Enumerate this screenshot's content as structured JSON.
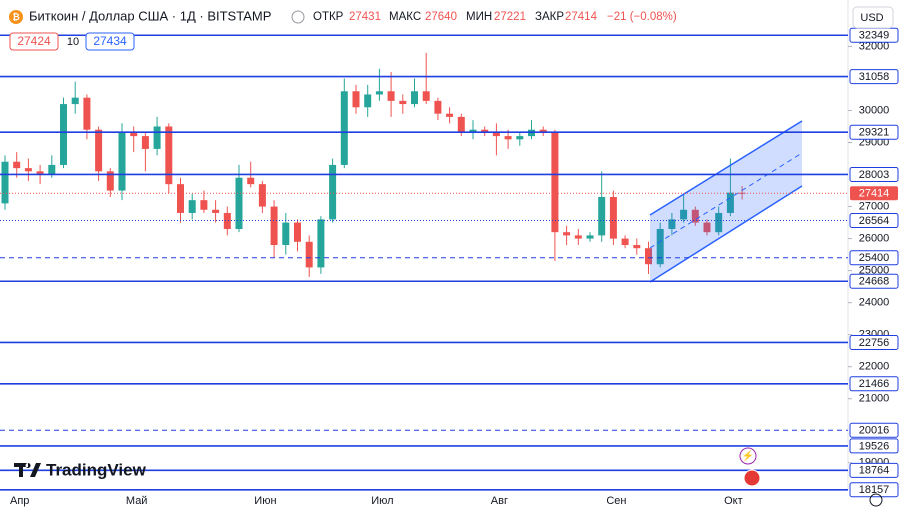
{
  "chart_data": {
    "type": "candlestick",
    "title": "Биткоин / Доллар США · 1Д · BITSTAMP",
    "stats": [
      {
        "label": "ОТКР",
        "value": 27431
      },
      {
        "label": "МАКС",
        "value": 27640
      },
      {
        "label": "МИН",
        "value": 27221
      },
      {
        "label": "ЗАКР",
        "value": 27414
      }
    ],
    "change": "−21 (−0.08%)",
    "quote": {
      "bid": 27424,
      "spread": 10,
      "ask": 27434
    },
    "currency": "USD",
    "brand": "TradingView",
    "categories": [
      null,
      "Апр",
      null,
      null,
      null,
      null,
      null,
      null,
      null,
      null,
      null,
      "Май",
      null,
      null,
      null,
      null,
      null,
      null,
      null,
      null,
      null,
      null,
      "Июн",
      null,
      null,
      null,
      null,
      null,
      null,
      null,
      null,
      null,
      "Июл",
      null,
      null,
      null,
      null,
      null,
      null,
      null,
      null,
      null,
      "Авг",
      null,
      null,
      null,
      null,
      null,
      null,
      null,
      null,
      null,
      "Сен",
      null,
      null,
      null,
      null,
      null,
      null,
      null,
      null,
      null,
      "Окт",
      null
    ],
    "open": [
      27100,
      28400,
      28200,
      28100,
      28000,
      28300,
      30200,
      30400,
      29400,
      28100,
      27500,
      29300,
      29200,
      28800,
      29500,
      27700,
      26800,
      27200,
      26900,
      26800,
      26300,
      27900,
      27700,
      27000,
      25800,
      26500,
      25900,
      25100,
      26600,
      28300,
      30600,
      30100,
      30500,
      30600,
      30300,
      30200,
      30600,
      30300,
      29900,
      29800,
      29300,
      29400,
      29300,
      29200,
      29100,
      29200,
      29400,
      29300,
      26200,
      26100,
      26000,
      26100,
      27300,
      26000,
      25800,
      25700,
      25200,
      26300,
      26600,
      26900,
      26500,
      26200,
      26800,
      27431
    ],
    "high": [
      28600,
      28700,
      28500,
      28300,
      28600,
      30400,
      30900,
      30500,
      29500,
      28200,
      29600,
      29500,
      29300,
      29800,
      29600,
      27900,
      27400,
      27500,
      27200,
      27000,
      28300,
      28400,
      27800,
      27200,
      26800,
      26600,
      26100,
      26700,
      28500,
      31000,
      30800,
      30800,
      31300,
      31200,
      30500,
      31000,
      31800,
      30400,
      30100,
      29900,
      29700,
      29500,
      29600,
      29400,
      29300,
      29700,
      29500,
      29400,
      26400,
      26300,
      26200,
      28100,
      27500,
      26100,
      26000,
      25900,
      26500,
      26800,
      27400,
      27000,
      26600,
      27000,
      28500,
      27640
    ],
    "low": [
      26900,
      27900,
      27800,
      27700,
      27900,
      28200,
      29900,
      29100,
      27800,
      27300,
      27200,
      28700,
      28100,
      28600,
      27400,
      26500,
      26600,
      26800,
      26500,
      26100,
      26200,
      27600,
      26800,
      25400,
      25500,
      25600,
      24800,
      24900,
      26500,
      28200,
      29900,
      29800,
      30300,
      29800,
      29900,
      30100,
      30200,
      29700,
      29600,
      29200,
      29100,
      29200,
      28600,
      28800,
      28900,
      29100,
      29200,
      25300,
      25800,
      25800,
      25900,
      25900,
      25800,
      25700,
      25500,
      24900,
      25100,
      26100,
      26500,
      26400,
      26100,
      26100,
      26700,
      27221
    ],
    "close": [
      28400,
      28200,
      28100,
      28000,
      28300,
      30200,
      30400,
      29400,
      28100,
      27500,
      29300,
      29200,
      28800,
      29500,
      27700,
      26800,
      27200,
      26900,
      26800,
      26300,
      27900,
      27700,
      27000,
      25800,
      26500,
      25900,
      25100,
      26600,
      28300,
      30600,
      30100,
      30500,
      30600,
      30300,
      30200,
      30600,
      30300,
      29900,
      29800,
      29300,
      29400,
      29300,
      29200,
      29100,
      29200,
      29400,
      29300,
      26200,
      26100,
      26000,
      26100,
      27300,
      26000,
      25800,
      25700,
      25200,
      26300,
      26600,
      26900,
      26500,
      26200,
      26800,
      27435,
      27414
    ],
    "up_color": "#26a69a",
    "down_color": "#ef5350",
    "level_color": "#1f3fe0",
    "levels": [
      {
        "value": 32349,
        "style": "solid"
      },
      {
        "value": 31058,
        "style": "solid"
      },
      {
        "value": 29321,
        "style": "solid"
      },
      {
        "value": 28003,
        "style": "solid"
      },
      {
        "value": 26564,
        "style": "dotted"
      },
      {
        "value": 25400,
        "style": "dashed"
      },
      {
        "value": 24668,
        "style": "solid"
      },
      {
        "value": 22756,
        "style": "solid"
      },
      {
        "value": 21466,
        "style": "solid"
      },
      {
        "value": 20016,
        "style": "dashed"
      },
      {
        "value": 19526,
        "style": "solid"
      },
      {
        "value": 18764,
        "style": "solid"
      },
      {
        "value": 18157,
        "style": "solid"
      }
    ],
    "ylim": [
      18150,
      33200
    ],
    "yticks": [
      32000,
      30000,
      29000,
      27000,
      26000,
      25000,
      24000,
      23000,
      22000,
      21000,
      19000
    ],
    "grid": false
  }
}
